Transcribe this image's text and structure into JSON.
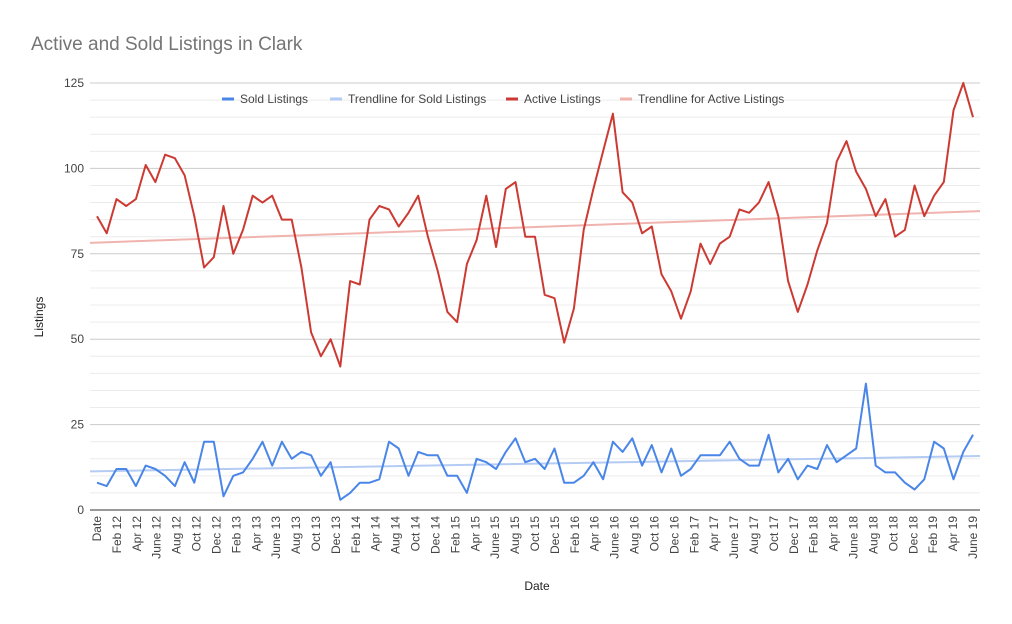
{
  "chart_data": {
    "type": "line",
    "title": "Active and Sold Listings in Clark",
    "xlabel": "Date",
    "ylabel": "Listings",
    "ylim": [
      0,
      125
    ],
    "yticks": [
      0,
      25,
      50,
      75,
      100,
      125
    ],
    "grid": true,
    "legend_position": "top",
    "x_tick_labels": [
      "Date",
      "Feb 12",
      "Apr 12",
      "June 12",
      "Aug 12",
      "Oct 12",
      "Dec 12",
      "Feb 13",
      "Apr 13",
      "June 13",
      "Aug 13",
      "Oct 13",
      "Dec 13",
      "Feb 14",
      "Apr 14",
      "Aug 14",
      "Oct 14",
      "Dec 14",
      "Feb 15",
      "Apr 15",
      "June 15",
      "Aug 15",
      "Oct 15",
      "Dec 15",
      "Feb 16",
      "Apr 16",
      "June 16",
      "Aug 16",
      "Oct 16",
      "Dec 16",
      "Feb 17",
      "Apr 17",
      "June 17",
      "Aug 17",
      "Oct 17",
      "Dec 17",
      "Feb 18",
      "Apr 18",
      "June 18",
      "Aug 18",
      "Oct 18",
      "Dec 18",
      "Feb 19",
      "Apr 19",
      "June 19"
    ],
    "series": [
      {
        "name": "Sold Listings",
        "color": "#4a86e8",
        "values": [
          8,
          7,
          12,
          12,
          7,
          13,
          12,
          10,
          7,
          14,
          8,
          20,
          20,
          4,
          10,
          11,
          15,
          20,
          13,
          20,
          15,
          17,
          16,
          10,
          14,
          3,
          5,
          8,
          8,
          9,
          20,
          18,
          10,
          17,
          16,
          16,
          10,
          10,
          5,
          15,
          14,
          12,
          17,
          21,
          14,
          15,
          12,
          18,
          8,
          8,
          10,
          14,
          9,
          20,
          17,
          21,
          13,
          19,
          11,
          18,
          10,
          12,
          16,
          16,
          16,
          20,
          15,
          13,
          13,
          22,
          11,
          15,
          9,
          13,
          12,
          19,
          14,
          16,
          18,
          37,
          13,
          11,
          11,
          8,
          6,
          9,
          20,
          18,
          9,
          17,
          22
        ]
      },
      {
        "name": "Trendline for Sold Listings",
        "color": "#b4cbf3",
        "trend": [
          11.3,
          15.8
        ]
      },
      {
        "name": "Active Listings",
        "color": "#cc3b33",
        "values": [
          86,
          81,
          91,
          89,
          91,
          101,
          96,
          104,
          103,
          98,
          86,
          71,
          74,
          89,
          75,
          82,
          92,
          90,
          92,
          85,
          85,
          71,
          52,
          45,
          50,
          42,
          67,
          66,
          85,
          89,
          88,
          83,
          87,
          92,
          80,
          70,
          58,
          55,
          72,
          79,
          92,
          77,
          94,
          96,
          80,
          80,
          63,
          62,
          49,
          59,
          82,
          94,
          105,
          116,
          93,
          90,
          81,
          83,
          69,
          64,
          56,
          64,
          78,
          72,
          78,
          80,
          88,
          87,
          90,
          96,
          86,
          67,
          58,
          66,
          76,
          84,
          102,
          108,
          99,
          94,
          86,
          91,
          80,
          82,
          95,
          86,
          92,
          96,
          117,
          125,
          115
        ]
      },
      {
        "name": "Trendline for Active Listings",
        "color": "#f0b3ae",
        "trend": [
          78.2,
          87.5
        ]
      }
    ]
  }
}
